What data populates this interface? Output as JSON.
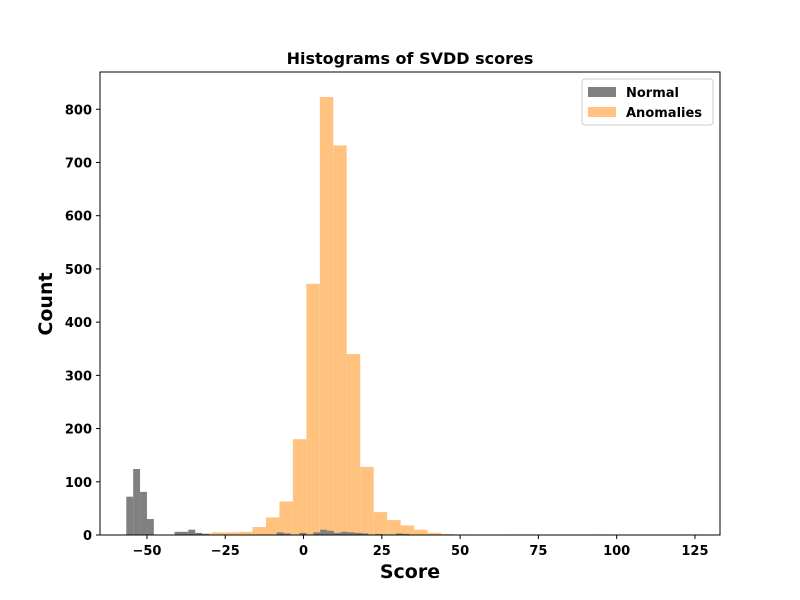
{
  "chart_data": {
    "type": "histogram",
    "title": "Histograms of SVDD scores",
    "xlabel": "Score",
    "ylabel": "Count",
    "xlim": [
      -65,
      133
    ],
    "ylim": [
      0,
      870
    ],
    "xticks": [
      -50,
      -25,
      0,
      25,
      50,
      75,
      100,
      125
    ],
    "yticks": [
      0,
      100,
      200,
      300,
      400,
      500,
      600,
      700,
      800
    ],
    "grid": false,
    "legend_position": "top-right",
    "series": [
      {
        "name": "Anomalies",
        "color": "#ffc27f",
        "bin_width": 4.3,
        "bins": [
          {
            "x0": -33.5,
            "count": 3
          },
          {
            "x0": -29.2,
            "count": 5
          },
          {
            "x0": -24.9,
            "count": 5
          },
          {
            "x0": -20.6,
            "count": 6
          },
          {
            "x0": -16.3,
            "count": 15
          },
          {
            "x0": -12.0,
            "count": 33
          },
          {
            "x0": -7.7,
            "count": 63
          },
          {
            "x0": -3.4,
            "count": 180
          },
          {
            "x0": 0.9,
            "count": 472
          },
          {
            "x0": 5.2,
            "count": 823
          },
          {
            "x0": 9.5,
            "count": 732
          },
          {
            "x0": 13.8,
            "count": 340
          },
          {
            "x0": 18.1,
            "count": 128
          },
          {
            "x0": 22.4,
            "count": 43
          },
          {
            "x0": 26.7,
            "count": 28
          },
          {
            "x0": 31.0,
            "count": 18
          },
          {
            "x0": 35.3,
            "count": 10
          },
          {
            "x0": 39.6,
            "count": 4
          },
          {
            "x0": 43.9,
            "count": 2
          },
          {
            "x0": 48.2,
            "count": 1
          },
          {
            "x0": 66.0,
            "count": 1
          },
          {
            "x0": 70.3,
            "count": 1
          },
          {
            "x0": 92.0,
            "count": 1
          },
          {
            "x0": 121.5,
            "count": 1
          }
        ]
      },
      {
        "name": "Normal",
        "color": "#808080",
        "bin_width": 2.2,
        "bins": [
          {
            "x0": -56.6,
            "count": 72
          },
          {
            "x0": -54.4,
            "count": 124
          },
          {
            "x0": -52.2,
            "count": 81
          },
          {
            "x0": -50.0,
            "count": 30
          },
          {
            "x0": -41.2,
            "count": 6
          },
          {
            "x0": -39.0,
            "count": 6
          },
          {
            "x0": -36.8,
            "count": 10
          },
          {
            "x0": -34.6,
            "count": 4
          },
          {
            "x0": -32.4,
            "count": 2
          },
          {
            "x0": -8.6,
            "count": 5
          },
          {
            "x0": -6.4,
            "count": 3
          },
          {
            "x0": -1.3,
            "count": 4
          },
          {
            "x0": 3.1,
            "count": 5
          },
          {
            "x0": 5.3,
            "count": 10
          },
          {
            "x0": 7.5,
            "count": 8
          },
          {
            "x0": 9.7,
            "count": 4
          },
          {
            "x0": 11.9,
            "count": 6
          },
          {
            "x0": 14.1,
            "count": 5
          },
          {
            "x0": 16.3,
            "count": 4
          },
          {
            "x0": 18.5,
            "count": 3
          },
          {
            "x0": 22.9,
            "count": 2
          },
          {
            "x0": 29.5,
            "count": 3
          },
          {
            "x0": 31.7,
            "count": 2
          }
        ]
      }
    ],
    "legend": [
      {
        "label": "Normal",
        "color": "#808080"
      },
      {
        "label": "Anomalies",
        "color": "#ffc27f"
      }
    ]
  }
}
